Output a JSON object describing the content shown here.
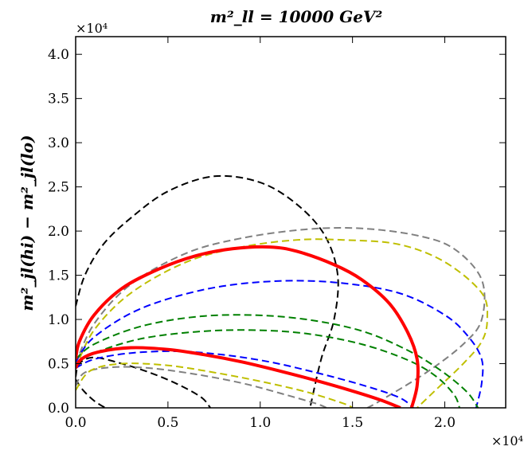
{
  "chart_data": {
    "type": "line",
    "title": "m²_ll = 10000 GeV²",
    "xlabel": "",
    "ylabel": "m²_jl(hi) − m²_jl(lo)",
    "x_multiplier": "×10⁴",
    "y_multiplier": "×10⁴",
    "xlim": [
      0,
      2.33
    ],
    "ylim": [
      0,
      4.2
    ],
    "x_scale": 10000,
    "y_scale": 10000,
    "x_ticks": [
      0.0,
      0.5,
      1.0,
      1.5,
      2.0
    ],
    "x_tick_labels": [
      "0.0",
      "0.5",
      "1.0",
      "1.5",
      "2.0"
    ],
    "y_ticks": [
      0.0,
      0.5,
      1.0,
      1.5,
      2.0,
      2.5,
      3.0,
      3.5,
      4.0
    ],
    "y_tick_labels": [
      "0.0",
      "0.5",
      "1.0",
      "1.5",
      "2.0",
      "2.5",
      "3.0",
      "3.5",
      "4.0"
    ],
    "series": [
      {
        "name": "black-dashed-large",
        "color": "#000000",
        "style": "dashed",
        "width": 2,
        "points": [
          [
            0.0,
            1.15
          ],
          [
            0.05,
            1.5
          ],
          [
            0.15,
            1.85
          ],
          [
            0.3,
            2.15
          ],
          [
            0.5,
            2.45
          ],
          [
            0.75,
            2.62
          ],
          [
            1.0,
            2.55
          ],
          [
            1.2,
            2.3
          ],
          [
            1.35,
            1.95
          ],
          [
            1.42,
            1.5
          ],
          [
            1.4,
            1.0
          ],
          [
            1.33,
            0.55
          ],
          [
            1.27,
            0.0
          ]
        ]
      },
      {
        "name": "black-dashed-small",
        "color": "#000000",
        "style": "dashed",
        "width": 2,
        "points": [
          [
            0.0,
            0.35
          ],
          [
            0.02,
            0.5
          ],
          [
            0.1,
            0.57
          ],
          [
            0.25,
            0.5
          ],
          [
            0.4,
            0.4
          ],
          [
            0.55,
            0.27
          ],
          [
            0.68,
            0.12
          ],
          [
            0.73,
            0.0
          ]
        ]
      },
      {
        "name": "black-dashed-corner",
        "color": "#000000",
        "style": "dashed",
        "width": 2,
        "points": [
          [
            0.0,
            0.32
          ],
          [
            0.04,
            0.2
          ],
          [
            0.1,
            0.08
          ],
          [
            0.16,
            0.0
          ]
        ]
      },
      {
        "name": "gray-dashed",
        "color": "#808080",
        "style": "dashed",
        "width": 2,
        "points": [
          [
            0.0,
            0.5
          ],
          [
            0.1,
            0.95
          ],
          [
            0.3,
            1.4
          ],
          [
            0.6,
            1.75
          ],
          [
            0.9,
            1.92
          ],
          [
            1.25,
            2.02
          ],
          [
            1.55,
            2.03
          ],
          [
            1.85,
            1.95
          ],
          [
            2.05,
            1.8
          ],
          [
            2.2,
            1.45
          ],
          [
            2.2,
            1.0
          ],
          [
            2.1,
            0.72
          ],
          [
            1.9,
            0.4
          ],
          [
            1.65,
            0.08
          ],
          [
            1.58,
            0.0
          ]
        ]
      },
      {
        "name": "gray-dashed-lower",
        "color": "#808080",
        "style": "dashed",
        "width": 2,
        "points": [
          [
            0.0,
            0.25
          ],
          [
            0.05,
            0.4
          ],
          [
            0.2,
            0.46
          ],
          [
            0.4,
            0.45
          ],
          [
            0.65,
            0.38
          ],
          [
            0.9,
            0.28
          ],
          [
            1.1,
            0.17
          ],
          [
            1.3,
            0.05
          ],
          [
            1.36,
            0.0
          ]
        ]
      },
      {
        "name": "yellow-dashed",
        "color": "#bfbf00",
        "style": "dashed",
        "width": 2,
        "points": [
          [
            0.0,
            0.45
          ],
          [
            0.1,
            0.88
          ],
          [
            0.3,
            1.3
          ],
          [
            0.6,
            1.65
          ],
          [
            0.9,
            1.82
          ],
          [
            1.2,
            1.9
          ],
          [
            1.45,
            1.9
          ],
          [
            1.75,
            1.85
          ],
          [
            2.0,
            1.65
          ],
          [
            2.2,
            1.3
          ],
          [
            2.23,
            1.0
          ],
          [
            2.2,
            0.75
          ],
          [
            2.1,
            0.5
          ],
          [
            1.95,
            0.2
          ],
          [
            1.85,
            0.0
          ]
        ]
      },
      {
        "name": "yellow-dashed-lower",
        "color": "#bfbf00",
        "style": "dashed",
        "width": 2,
        "points": [
          [
            0.0,
            0.2
          ],
          [
            0.08,
            0.42
          ],
          [
            0.25,
            0.5
          ],
          [
            0.5,
            0.48
          ],
          [
            0.75,
            0.4
          ],
          [
            1.0,
            0.3
          ],
          [
            1.25,
            0.18
          ],
          [
            1.45,
            0.05
          ],
          [
            1.5,
            0.0
          ]
        ]
      },
      {
        "name": "blue-dashed-upper",
        "color": "#0000ff",
        "style": "dashed",
        "width": 2,
        "points": [
          [
            0.0,
            0.52
          ],
          [
            0.1,
            0.8
          ],
          [
            0.35,
            1.12
          ],
          [
            0.7,
            1.34
          ],
          [
            1.05,
            1.43
          ],
          [
            1.4,
            1.42
          ],
          [
            1.75,
            1.3
          ],
          [
            2.0,
            1.05
          ],
          [
            2.13,
            0.8
          ],
          [
            2.2,
            0.55
          ],
          [
            2.2,
            0.28
          ],
          [
            2.17,
            0.0
          ]
        ]
      },
      {
        "name": "blue-dashed-lower",
        "color": "#0000ff",
        "style": "dashed",
        "width": 2,
        "points": [
          [
            0.0,
            0.45
          ],
          [
            0.1,
            0.55
          ],
          [
            0.3,
            0.62
          ],
          [
            0.55,
            0.64
          ],
          [
            0.8,
            0.6
          ],
          [
            1.05,
            0.52
          ],
          [
            1.3,
            0.4
          ],
          [
            1.55,
            0.26
          ],
          [
            1.75,
            0.12
          ],
          [
            1.83,
            0.0
          ]
        ]
      },
      {
        "name": "green-dashed-1",
        "color": "#008000",
        "style": "dashed",
        "width": 2,
        "points": [
          [
            0.0,
            0.55
          ],
          [
            0.1,
            0.72
          ],
          [
            0.35,
            0.92
          ],
          [
            0.65,
            1.03
          ],
          [
            0.95,
            1.05
          ],
          [
            1.25,
            1.0
          ],
          [
            1.55,
            0.87
          ],
          [
            1.8,
            0.65
          ],
          [
            1.98,
            0.42
          ],
          [
            2.12,
            0.18
          ],
          [
            2.18,
            0.0
          ]
        ]
      },
      {
        "name": "green-dashed-2",
        "color": "#008000",
        "style": "dashed",
        "width": 2,
        "points": [
          [
            0.0,
            0.5
          ],
          [
            0.1,
            0.62
          ],
          [
            0.35,
            0.78
          ],
          [
            0.65,
            0.86
          ],
          [
            0.95,
            0.88
          ],
          [
            1.25,
            0.84
          ],
          [
            1.55,
            0.72
          ],
          [
            1.8,
            0.54
          ],
          [
            1.95,
            0.36
          ],
          [
            2.05,
            0.15
          ],
          [
            2.08,
            0.0
          ]
        ]
      },
      {
        "name": "red-solid-outer",
        "color": "#ff0000",
        "style": "solid",
        "width": 4,
        "points": [
          [
            0.0,
            0.55
          ],
          [
            0.02,
            0.75
          ],
          [
            0.1,
            1.05
          ],
          [
            0.25,
            1.35
          ],
          [
            0.45,
            1.57
          ],
          [
            0.65,
            1.72
          ],
          [
            0.85,
            1.8
          ],
          [
            1.05,
            1.82
          ],
          [
            1.2,
            1.77
          ],
          [
            1.4,
            1.62
          ],
          [
            1.55,
            1.45
          ],
          [
            1.7,
            1.18
          ],
          [
            1.8,
            0.85
          ],
          [
            1.85,
            0.55
          ],
          [
            1.85,
            0.25
          ],
          [
            1.82,
            0.0
          ]
        ]
      },
      {
        "name": "red-solid-inner",
        "color": "#ff0000",
        "style": "solid",
        "width": 4,
        "points": [
          [
            0.0,
            0.45
          ],
          [
            0.03,
            0.55
          ],
          [
            0.12,
            0.63
          ],
          [
            0.3,
            0.68
          ],
          [
            0.5,
            0.66
          ],
          [
            0.7,
            0.6
          ],
          [
            0.9,
            0.52
          ],
          [
            1.1,
            0.42
          ],
          [
            1.3,
            0.31
          ],
          [
            1.5,
            0.19
          ],
          [
            1.65,
            0.09
          ],
          [
            1.76,
            0.0
          ]
        ]
      }
    ]
  }
}
